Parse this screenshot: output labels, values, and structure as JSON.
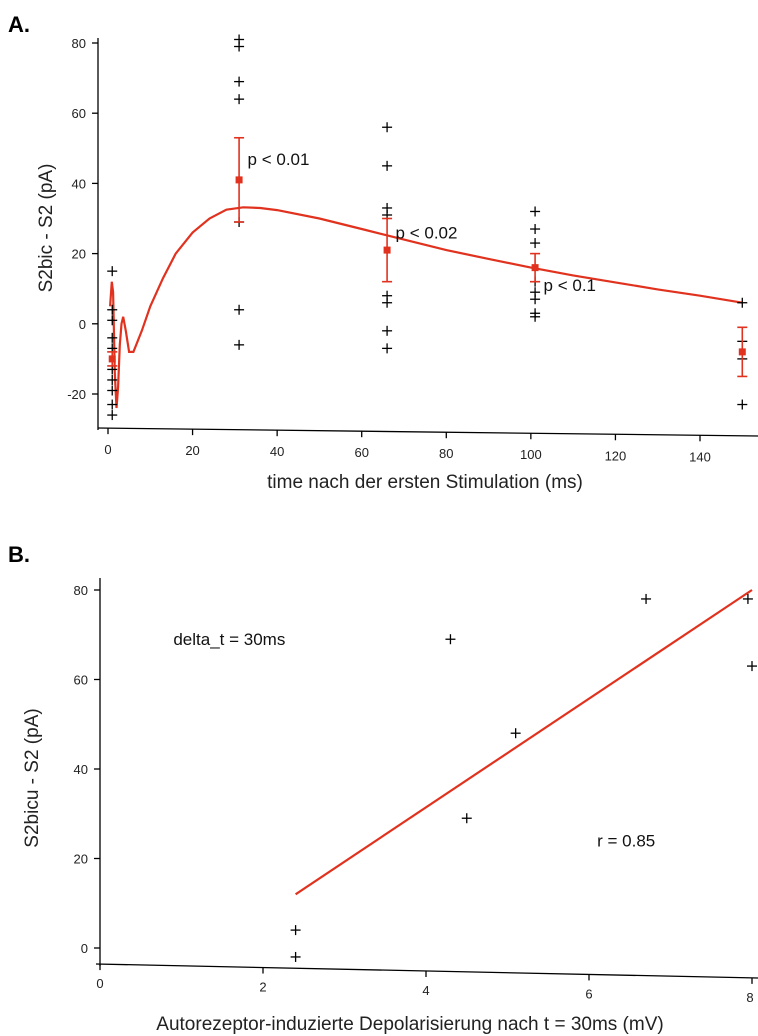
{
  "chart_data": [
    {
      "panel_label": "A.",
      "type": "scatter",
      "xlabel": "time nach der ersten Stimulation (ms)",
      "ylabel": "S2bic - S2  (pA)",
      "xlim": [
        -2,
        150
      ],
      "ylim": [
        -30,
        82
      ],
      "x_ticks": [
        0,
        20,
        40,
        60,
        80,
        100,
        120,
        140
      ],
      "y_ticks": [
        -20,
        0,
        20,
        40,
        60,
        80
      ],
      "accent_color": "#e0321e",
      "points": [
        {
          "x": 1,
          "y": 15
        },
        {
          "x": 1,
          "y": 4
        },
        {
          "x": 1,
          "y": 1
        },
        {
          "x": 1,
          "y": -4
        },
        {
          "x": 1,
          "y": -7
        },
        {
          "x": 1,
          "y": -13
        },
        {
          "x": 1,
          "y": -16
        },
        {
          "x": 1,
          "y": -19
        },
        {
          "x": 1,
          "y": -23
        },
        {
          "x": 1,
          "y": -26
        },
        {
          "x": 31,
          "y": 81
        },
        {
          "x": 31,
          "y": 79
        },
        {
          "x": 31,
          "y": 69
        },
        {
          "x": 31,
          "y": 64
        },
        {
          "x": 31,
          "y": 29
        },
        {
          "x": 31,
          "y": 4
        },
        {
          "x": 31,
          "y": -6
        },
        {
          "x": 66,
          "y": 56
        },
        {
          "x": 66,
          "y": 45
        },
        {
          "x": 66,
          "y": 33
        },
        {
          "x": 66,
          "y": 31
        },
        {
          "x": 66,
          "y": 8
        },
        {
          "x": 66,
          "y": 6
        },
        {
          "x": 66,
          "y": -2
        },
        {
          "x": 66,
          "y": -7
        },
        {
          "x": 101,
          "y": 32
        },
        {
          "x": 101,
          "y": 27
        },
        {
          "x": 101,
          "y": 23
        },
        {
          "x": 101,
          "y": 12
        },
        {
          "x": 101,
          "y": 9
        },
        {
          "x": 101,
          "y": 7
        },
        {
          "x": 101,
          "y": 3
        },
        {
          "x": 101,
          "y": 2
        },
        {
          "x": 150,
          "y": 6
        },
        {
          "x": 150,
          "y": -5
        },
        {
          "x": 150,
          "y": -10
        },
        {
          "x": 150,
          "y": -23
        }
      ],
      "means": [
        {
          "x": 1,
          "y": -10,
          "err": 2
        },
        {
          "x": 31,
          "y": 41,
          "err": 12
        },
        {
          "x": 66,
          "y": 21,
          "err": 9
        },
        {
          "x": 101,
          "y": 16,
          "err": 4
        },
        {
          "x": 150,
          "y": -8,
          "err": 7
        }
      ],
      "fit_curve": [
        [
          0.5,
          5
        ],
        [
          0.9,
          12
        ],
        [
          1.2,
          9
        ],
        [
          1.6,
          -14
        ],
        [
          2,
          -24
        ],
        [
          2.4,
          -18
        ],
        [
          2.8,
          -6
        ],
        [
          3.2,
          0
        ],
        [
          3.6,
          2
        ],
        [
          4.2,
          -2
        ],
        [
          5,
          -8
        ],
        [
          6,
          -8
        ],
        [
          8,
          -2
        ],
        [
          10,
          5
        ],
        [
          13,
          13
        ],
        [
          16,
          20
        ],
        [
          20,
          26
        ],
        [
          24,
          30
        ],
        [
          28,
          32.5
        ],
        [
          32,
          33.2
        ],
        [
          36,
          33
        ],
        [
          40,
          32.4
        ],
        [
          50,
          30
        ],
        [
          60,
          27
        ],
        [
          70,
          24
        ],
        [
          80,
          21
        ],
        [
          90,
          18.5
        ],
        [
          100,
          16
        ],
        [
          110,
          13.8
        ],
        [
          120,
          11.8
        ],
        [
          130,
          9.8
        ],
        [
          140,
          8
        ],
        [
          150,
          6
        ]
      ],
      "annotations": [
        {
          "text": "p < 0.01",
          "x": 33,
          "y": 47
        },
        {
          "text": "p < 0.02",
          "x": 68,
          "y": 26
        },
        {
          "text": "p < 0.1",
          "x": 103,
          "y": 11
        }
      ]
    },
    {
      "panel_label": "B.",
      "type": "scatter",
      "xlabel": "Autorezeptor-induzierte Depolarisierung nach t = 30ms  (mV)",
      "ylabel": "S2bicu - S2  (pA)",
      "xlim": [
        0,
        8
      ],
      "ylim": [
        -3,
        82
      ],
      "x_ticks": [
        0,
        2,
        4,
        6,
        8
      ],
      "y_ticks": [
        0,
        20,
        40,
        60,
        80
      ],
      "accent_color": "#e0321e",
      "points": [
        {
          "x": 2.4,
          "y": 4
        },
        {
          "x": 2.4,
          "y": -2
        },
        {
          "x": 4.3,
          "y": 69
        },
        {
          "x": 4.5,
          "y": 29
        },
        {
          "x": 5.1,
          "y": 48
        },
        {
          "x": 6.7,
          "y": 78
        },
        {
          "x": 7.95,
          "y": 78
        },
        {
          "x": 8.05,
          "y": 63
        }
      ],
      "fit_line": [
        [
          2.4,
          12
        ],
        [
          8,
          80
        ]
      ],
      "annotations": [
        {
          "text": "delta_t = 30ms",
          "x": 0.9,
          "y": 69
        },
        {
          "text": "r = 0.85",
          "x": 6.1,
          "y": 24
        }
      ]
    }
  ]
}
